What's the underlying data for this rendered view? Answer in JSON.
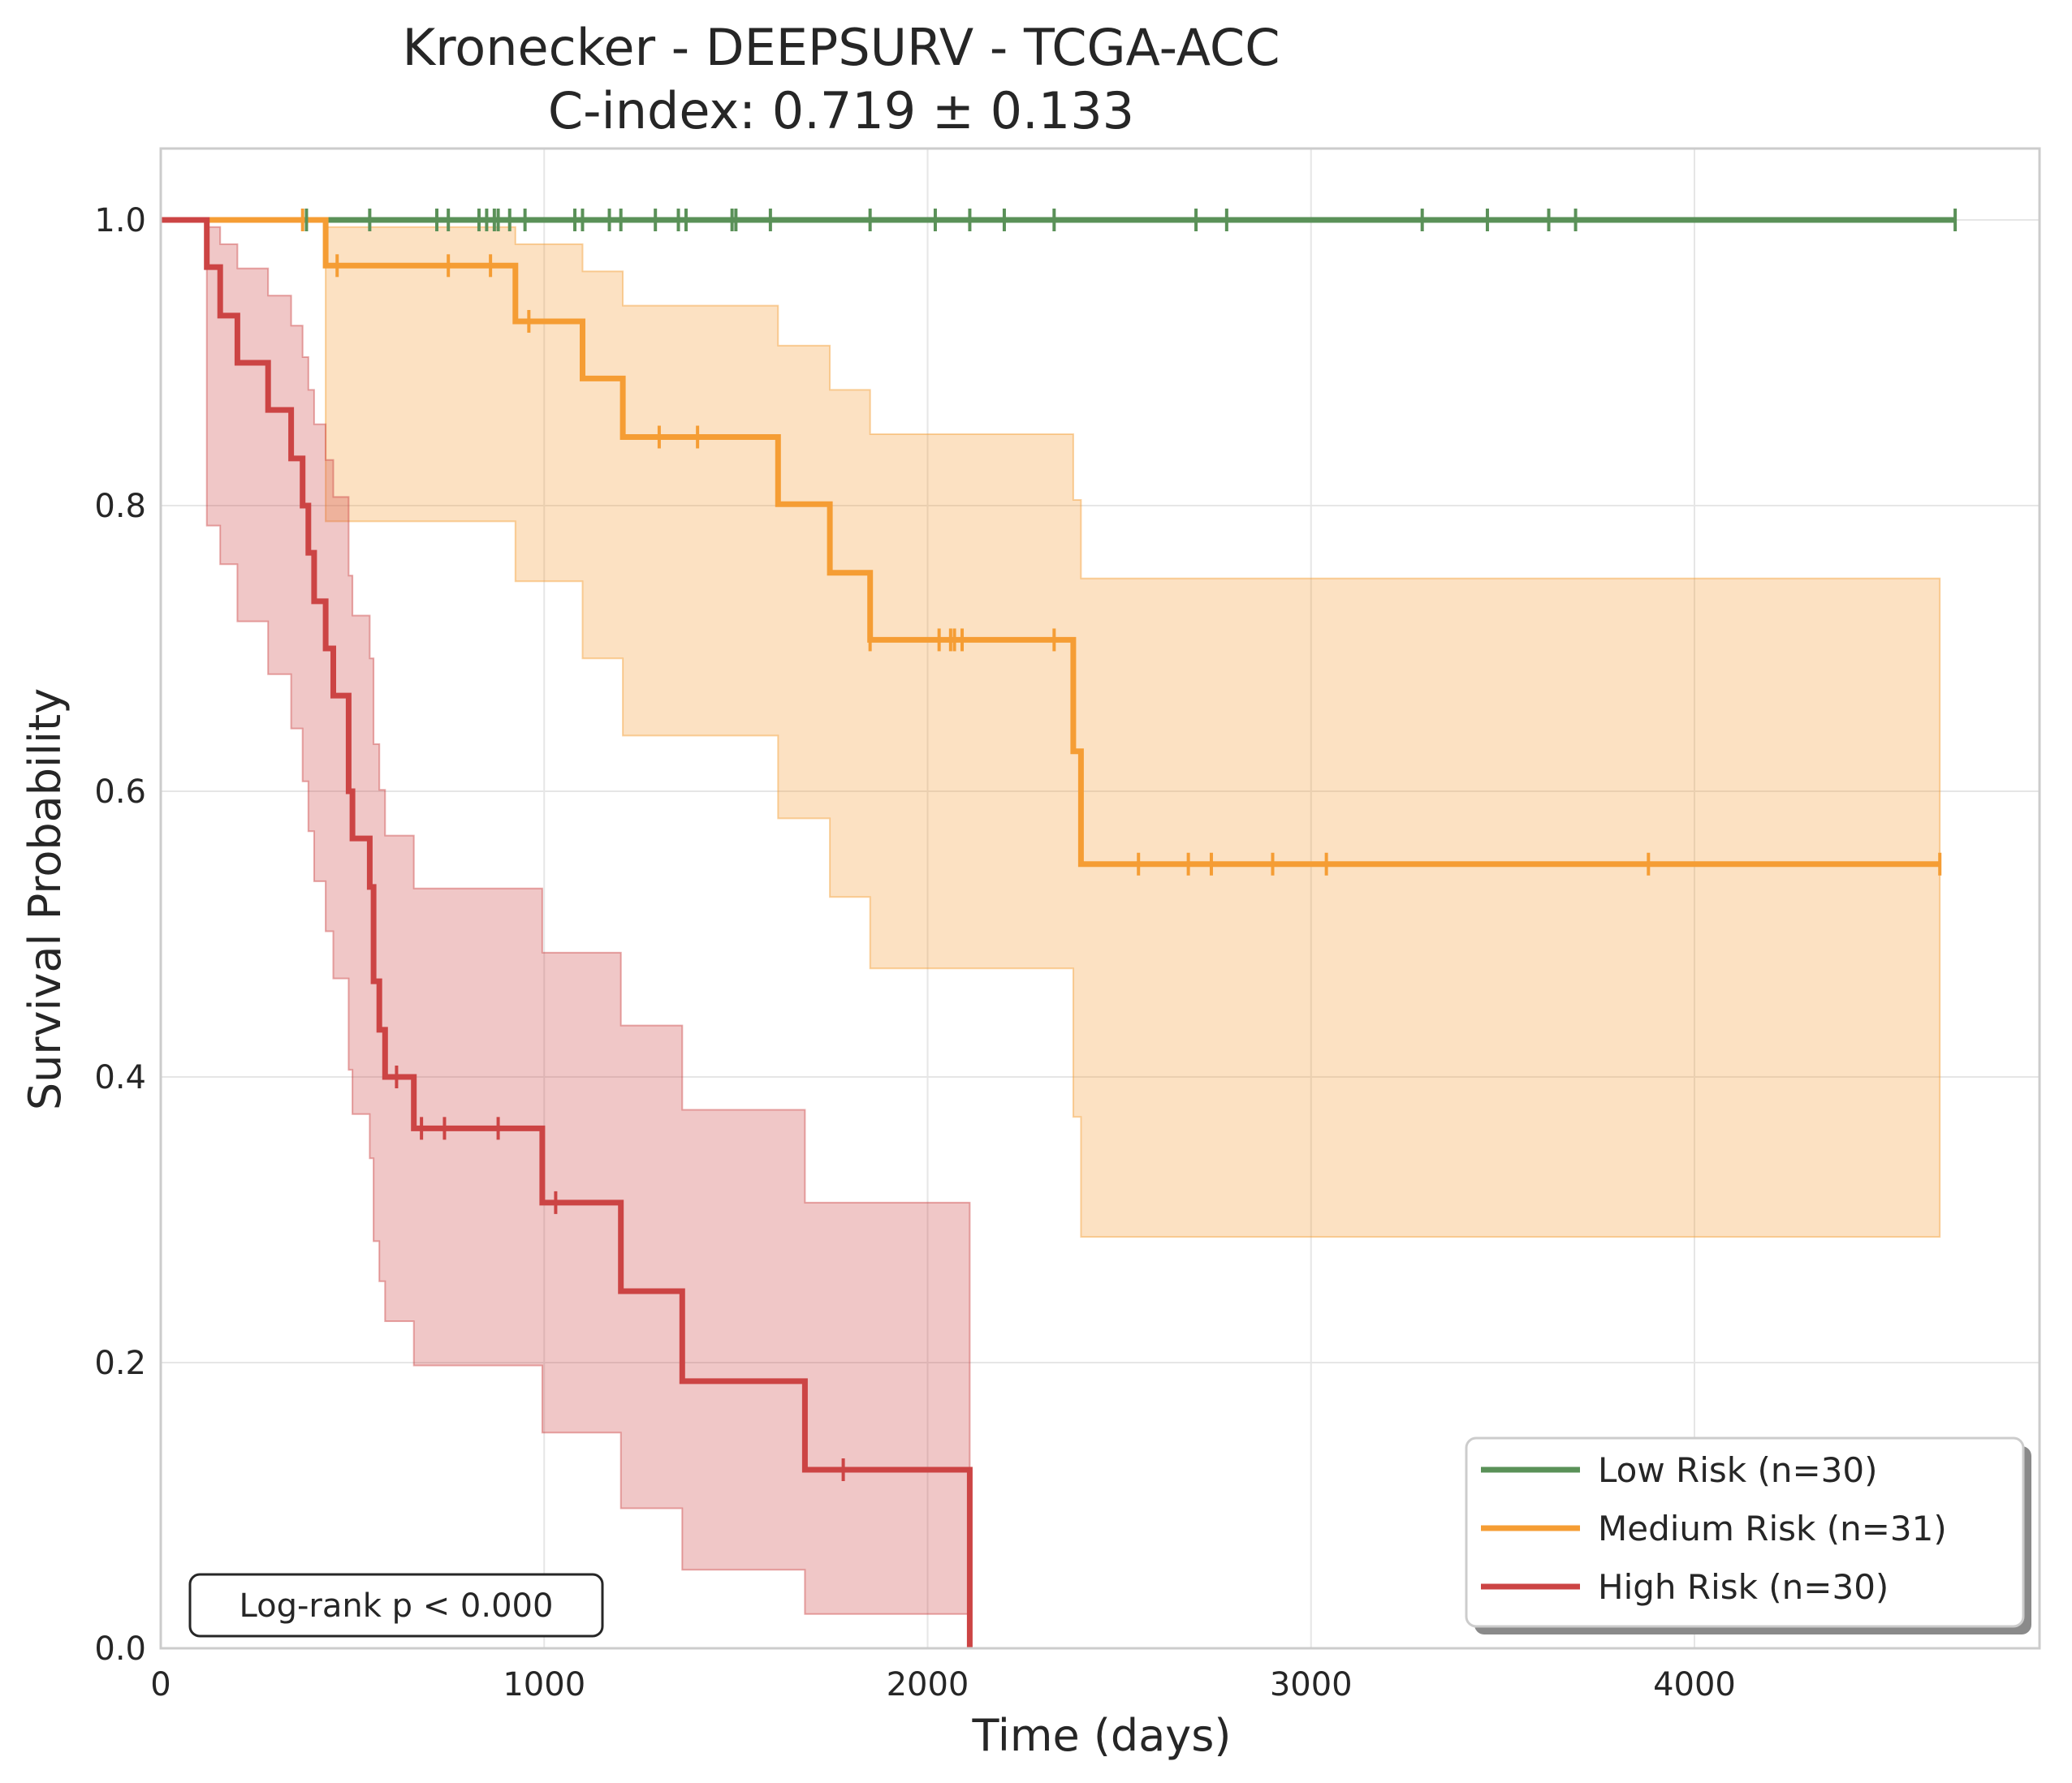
{
  "chart_data": {
    "type": "line",
    "title": "Kronecker - DEEPSURV - TCGA-ACC",
    "subtitle": "C-index: 0.719 ± 0.133",
    "xlabel": "Time (days)",
    "ylabel": "Survival Probability",
    "xlim": [
      0,
      4900
    ],
    "ylim": [
      0,
      1.05
    ],
    "xticks": [
      0,
      1000,
      2000,
      3000,
      4000
    ],
    "xtick_labels": [
      "0",
      "1000",
      "2000",
      "3000",
      "4000"
    ],
    "yticks": [
      0.0,
      0.2,
      0.4,
      0.6,
      0.8,
      1.0
    ],
    "ytick_labels": [
      "0.0",
      "0.2",
      "0.4",
      "0.6",
      "0.8",
      "1.0"
    ],
    "grid": true,
    "legend_position": "bottom-right",
    "annotation": "Log-rank p < 0.000",
    "series": [
      {
        "name": "Low Risk (n=30)",
        "color": "#5a9158",
        "steps": [
          [
            0,
            1.0
          ],
          [
            4680,
            1.0
          ]
        ],
        "ci": [
          [
            0,
            1.0,
            1.0
          ],
          [
            4680,
            1.0,
            1.0
          ]
        ],
        "censored": [
          [
            380,
            1.0
          ],
          [
            545,
            1.0
          ],
          [
            720,
            1.0
          ],
          [
            750,
            1.0
          ],
          [
            830,
            1.0
          ],
          [
            850,
            1.0
          ],
          [
            870,
            1.0
          ],
          [
            880,
            1.0
          ],
          [
            910,
            1.0
          ],
          [
            950,
            1.0
          ],
          [
            1080,
            1.0
          ],
          [
            1100,
            1.0
          ],
          [
            1170,
            1.0
          ],
          [
            1200,
            1.0
          ],
          [
            1290,
            1.0
          ],
          [
            1350,
            1.0
          ],
          [
            1370,
            1.0
          ],
          [
            1490,
            1.0
          ],
          [
            1500,
            1.0
          ],
          [
            1590,
            1.0
          ],
          [
            1850,
            1.0
          ],
          [
            2020,
            1.0
          ],
          [
            2110,
            1.0
          ],
          [
            2200,
            1.0
          ],
          [
            2330,
            1.0
          ],
          [
            2700,
            1.0
          ],
          [
            2780,
            1.0
          ],
          [
            3290,
            1.0
          ],
          [
            3460,
            1.0
          ],
          [
            3620,
            1.0
          ],
          [
            3690,
            1.0
          ],
          [
            4680,
            1.0
          ]
        ]
      },
      {
        "name": "Medium Risk (n=31)",
        "color": "#f59d34",
        "steps": [
          [
            0,
            1.0
          ],
          [
            430,
            0.968
          ],
          [
            925,
            0.929
          ],
          [
            1100,
            0.889
          ],
          [
            1205,
            0.848
          ],
          [
            1610,
            0.801
          ],
          [
            1745,
            0.753
          ],
          [
            1850,
            0.706
          ],
          [
            2380,
            0.628
          ],
          [
            2400,
            0.549
          ],
          [
            4640,
            0.549
          ]
        ],
        "ci": [
          [
            0,
            1.0,
            1.0
          ],
          [
            430,
            0.789,
            0.995
          ],
          [
            925,
            0.747,
            0.983
          ],
          [
            1100,
            0.693,
            0.964
          ],
          [
            1205,
            0.639,
            0.94
          ],
          [
            1610,
            0.581,
            0.912
          ],
          [
            1745,
            0.526,
            0.881
          ],
          [
            1850,
            0.476,
            0.85
          ],
          [
            2380,
            0.372,
            0.804
          ],
          [
            2400,
            0.288,
            0.749
          ],
          [
            4640,
            0.288,
            0.749
          ]
        ],
        "censored": [
          [
            370,
            1.0
          ],
          [
            460,
            0.968
          ],
          [
            750,
            0.968
          ],
          [
            860,
            0.968
          ],
          [
            960,
            0.929
          ],
          [
            1300,
            0.848
          ],
          [
            1400,
            0.848
          ],
          [
            1850,
            0.706
          ],
          [
            2030,
            0.706
          ],
          [
            2060,
            0.706
          ],
          [
            2070,
            0.706
          ],
          [
            2090,
            0.706
          ],
          [
            2330,
            0.706
          ],
          [
            2550,
            0.549
          ],
          [
            2680,
            0.549
          ],
          [
            2740,
            0.549
          ],
          [
            2900,
            0.549
          ],
          [
            3040,
            0.549
          ],
          [
            3880,
            0.549
          ],
          [
            4640,
            0.549
          ]
        ]
      },
      {
        "name": "High Risk (n=30)",
        "color": "#cc4444",
        "steps": [
          [
            0,
            1.0
          ],
          [
            120,
            0.967
          ],
          [
            155,
            0.933
          ],
          [
            200,
            0.9
          ],
          [
            280,
            0.867
          ],
          [
            340,
            0.833
          ],
          [
            370,
            0.8
          ],
          [
            385,
            0.767
          ],
          [
            400,
            0.733
          ],
          [
            430,
            0.7
          ],
          [
            450,
            0.667
          ],
          [
            490,
            0.6
          ],
          [
            500,
            0.567
          ],
          [
            545,
            0.533
          ],
          [
            555,
            0.467
          ],
          [
            570,
            0.433
          ],
          [
            585,
            0.4
          ],
          [
            660,
            0.364
          ],
          [
            995,
            0.312
          ],
          [
            1200,
            0.25
          ],
          [
            1360,
            0.187
          ],
          [
            1680,
            0.125
          ],
          [
            2110,
            0.125
          ],
          [
            2110,
            0.0
          ]
        ],
        "ci": [
          [
            0,
            1.0,
            1.0
          ],
          [
            120,
            0.786,
            0.995
          ],
          [
            155,
            0.759,
            0.983
          ],
          [
            200,
            0.719,
            0.966
          ],
          [
            280,
            0.682,
            0.947
          ],
          [
            340,
            0.644,
            0.926
          ],
          [
            370,
            0.607,
            0.904
          ],
          [
            385,
            0.572,
            0.881
          ],
          [
            400,
            0.537,
            0.857
          ],
          [
            430,
            0.502,
            0.832
          ],
          [
            450,
            0.469,
            0.806
          ],
          [
            490,
            0.405,
            0.751
          ],
          [
            500,
            0.374,
            0.723
          ],
          [
            545,
            0.343,
            0.693
          ],
          [
            555,
            0.285,
            0.633
          ],
          [
            570,
            0.257,
            0.601
          ],
          [
            585,
            0.229,
            0.569
          ],
          [
            660,
            0.198,
            0.532
          ],
          [
            995,
            0.151,
            0.487
          ],
          [
            1200,
            0.098,
            0.436
          ],
          [
            1360,
            0.055,
            0.377
          ],
          [
            1680,
            0.024,
            0.312
          ],
          [
            2110,
            0.024,
            0.312
          ]
        ],
        "censored": [
          [
            615,
            0.4
          ],
          [
            680,
            0.364
          ],
          [
            740,
            0.364
          ],
          [
            880,
            0.364
          ],
          [
            1030,
            0.312
          ],
          [
            1780,
            0.125
          ]
        ]
      }
    ]
  }
}
